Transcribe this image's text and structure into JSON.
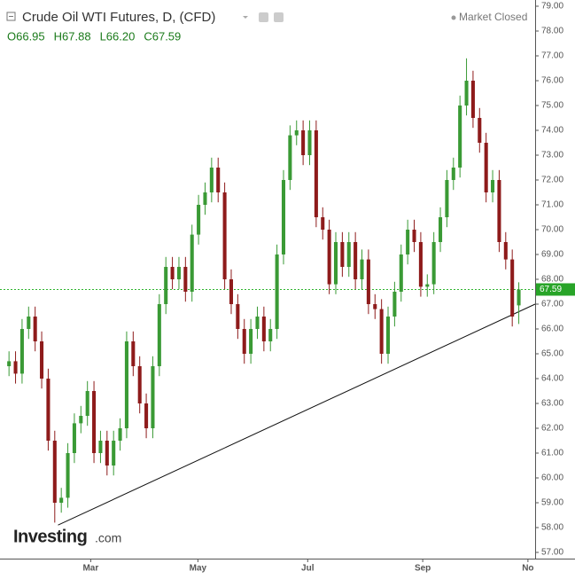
{
  "chart_data": {
    "type": "candlestick",
    "title": "Crude Oil WTI Futures, D, (CFD)",
    "status": "Market Closed",
    "ohlc_header": [
      {
        "value": 66.95,
        "label": "O66.95"
      },
      {
        "value": 67.88,
        "label": "H67.88"
      },
      {
        "value": 66.2,
        "label": "L66.20"
      },
      {
        "value": 67.59,
        "label": "C67.59"
      }
    ],
    "watermark": [
      "Investing",
      ".com"
    ],
    "up_color": "#3a9a35",
    "down_color": "#8e1b1b",
    "open": [
      64.5,
      64.7,
      64.2,
      66.0,
      66.5,
      65.5,
      64.0,
      61.5,
      59.0,
      59.2,
      61.0,
      62.2,
      62.5,
      63.5,
      61.0,
      61.5,
      60.5,
      61.5,
      62.0,
      65.5,
      64.5,
      63.0,
      62.0,
      64.5,
      67.0,
      68.5,
      68.0,
      68.5,
      67.5,
      69.8,
      71.0,
      71.5,
      72.5,
      71.5,
      68.0,
      67.0,
      66.0,
      65.0,
      66.0,
      66.5,
      65.5,
      66.0,
      69.0,
      72.0,
      73.8,
      74.0,
      73.0,
      74.0,
      70.5,
      70.0,
      67.8,
      69.5,
      68.5,
      69.5,
      68.0,
      68.8,
      67.0,
      66.8,
      65.0,
      66.5,
      67.5,
      69.0,
      70.0,
      69.5,
      67.7,
      67.8,
      69.5,
      70.5,
      72.0,
      72.5,
      75.0,
      76.0,
      74.5,
      73.5,
      71.5,
      72.0,
      69.5,
      68.8,
      66.95
    ],
    "high": [
      65.1,
      65.1,
      66.4,
      66.9,
      66.9,
      65.9,
      64.4,
      61.9,
      59.6,
      61.4,
      62.6,
      62.9,
      63.9,
      63.9,
      61.9,
      61.9,
      61.9,
      62.4,
      65.9,
      65.9,
      64.9,
      63.4,
      64.9,
      67.4,
      68.9,
      68.9,
      68.9,
      68.9,
      70.2,
      71.4,
      71.9,
      72.9,
      72.9,
      71.9,
      68.4,
      67.4,
      66.4,
      66.4,
      66.9,
      66.9,
      66.4,
      69.4,
      72.4,
      74.2,
      74.4,
      74.4,
      74.4,
      74.4,
      70.9,
      70.4,
      69.9,
      69.9,
      69.9,
      69.9,
      69.2,
      69.2,
      67.4,
      67.2,
      66.9,
      67.9,
      69.4,
      70.4,
      70.4,
      69.9,
      68.2,
      69.9,
      70.9,
      72.4,
      72.9,
      75.4,
      76.9,
      76.4,
      74.9,
      73.9,
      72.4,
      72.4,
      69.9,
      69.2,
      67.88
    ],
    "low": [
      64.1,
      63.8,
      63.8,
      65.6,
      65.1,
      63.6,
      61.1,
      58.2,
      58.6,
      58.8,
      60.6,
      61.8,
      62.1,
      60.6,
      60.6,
      60.1,
      60.1,
      61.1,
      61.6,
      64.1,
      62.6,
      61.6,
      61.6,
      64.1,
      66.6,
      67.6,
      67.6,
      67.1,
      67.1,
      69.4,
      70.6,
      71.1,
      71.1,
      67.6,
      66.6,
      65.6,
      64.6,
      64.6,
      65.6,
      65.1,
      65.1,
      65.6,
      68.6,
      71.6,
      73.4,
      72.6,
      72.6,
      70.1,
      69.6,
      67.4,
      67.4,
      68.1,
      68.1,
      67.6,
      67.6,
      66.6,
      66.4,
      64.6,
      64.6,
      66.1,
      67.1,
      68.6,
      69.1,
      67.3,
      67.3,
      67.4,
      69.1,
      70.1,
      71.6,
      72.1,
      74.6,
      74.1,
      73.1,
      71.1,
      71.1,
      69.1,
      68.4,
      66.1,
      66.2
    ],
    "close": [
      64.7,
      64.2,
      66.0,
      66.5,
      65.5,
      64.0,
      61.5,
      59.0,
      59.2,
      61.0,
      62.2,
      62.5,
      63.5,
      61.0,
      61.5,
      60.5,
      61.5,
      62.0,
      65.5,
      64.5,
      63.0,
      62.0,
      64.5,
      67.0,
      68.5,
      68.0,
      68.5,
      67.5,
      69.8,
      71.0,
      71.5,
      72.5,
      71.5,
      68.0,
      67.0,
      66.0,
      65.0,
      66.0,
      66.5,
      65.5,
      66.0,
      69.0,
      72.0,
      73.8,
      74.0,
      73.0,
      74.0,
      70.5,
      70.0,
      67.8,
      69.5,
      68.5,
      69.5,
      68.0,
      68.8,
      67.0,
      66.8,
      65.0,
      66.5,
      67.5,
      69.0,
      70.0,
      69.5,
      67.7,
      67.8,
      69.5,
      70.5,
      72.0,
      72.5,
      75.0,
      76.0,
      74.5,
      73.5,
      71.5,
      72.0,
      69.5,
      68.8,
      66.5,
      67.59
    ],
    "last_price": 67.59,
    "trendline": {
      "x": [
        7.5,
        80.5
      ],
      "y": [
        58.1,
        67.0
      ]
    },
    "xlim": [
      -0.7,
      80.5
    ],
    "xticks": [
      {
        "value": 12.5,
        "label": "Mar"
      },
      {
        "value": 28.9,
        "label": "May"
      },
      {
        "value": 45.7,
        "label": "Jul"
      },
      {
        "value": 63.3,
        "label": "Sep"
      },
      {
        "value": 79.4,
        "label": "No"
      }
    ],
    "ylim": [
      56.75,
      79.25
    ],
    "yticks": [
      {
        "value": 57,
        "label": "57.00"
      },
      {
        "value": 58,
        "label": "58.00"
      },
      {
        "value": 59,
        "label": "59.00"
      },
      {
        "value": 60,
        "label": "60.00"
      },
      {
        "value": 61,
        "label": "61.00"
      },
      {
        "value": 62,
        "label": "62.00"
      },
      {
        "value": 63,
        "label": "63.00"
      },
      {
        "value": 64,
        "label": "64.00"
      },
      {
        "value": 65,
        "label": "65.00"
      },
      {
        "value": 66,
        "label": "66.00"
      },
      {
        "value": 67,
        "label": "67.00"
      },
      {
        "value": 68,
        "label": "68.00"
      },
      {
        "value": 69,
        "label": "69.00"
      },
      {
        "value": 70,
        "label": "70.00"
      },
      {
        "value": 71,
        "label": "71.00"
      },
      {
        "value": 72,
        "label": "72.00"
      },
      {
        "value": 73,
        "label": "73.00"
      },
      {
        "value": 74,
        "label": "74.00"
      },
      {
        "value": 75,
        "label": "75.00"
      },
      {
        "value": 76,
        "label": "76.00"
      },
      {
        "value": 77,
        "label": "77.00"
      },
      {
        "value": 78,
        "label": "78.00"
      },
      {
        "value": 79,
        "label": "79.00"
      }
    ]
  }
}
